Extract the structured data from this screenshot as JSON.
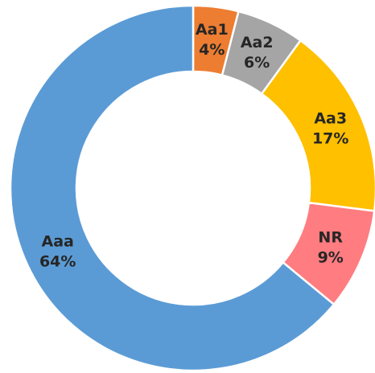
{
  "chart_data": {
    "type": "donut",
    "categories": [
      "Aa1",
      "Aa2",
      "Aa3",
      "NR",
      "Aaa"
    ],
    "values": [
      4,
      6,
      17,
      9,
      64
    ],
    "value_labels": [
      "4%",
      "6%",
      "17%",
      "9%",
      "64%"
    ],
    "colors": [
      "#ed7d31",
      "#a5a5a5",
      "#ffc000",
      "#ff7c80",
      "#5b9bd5"
    ]
  }
}
